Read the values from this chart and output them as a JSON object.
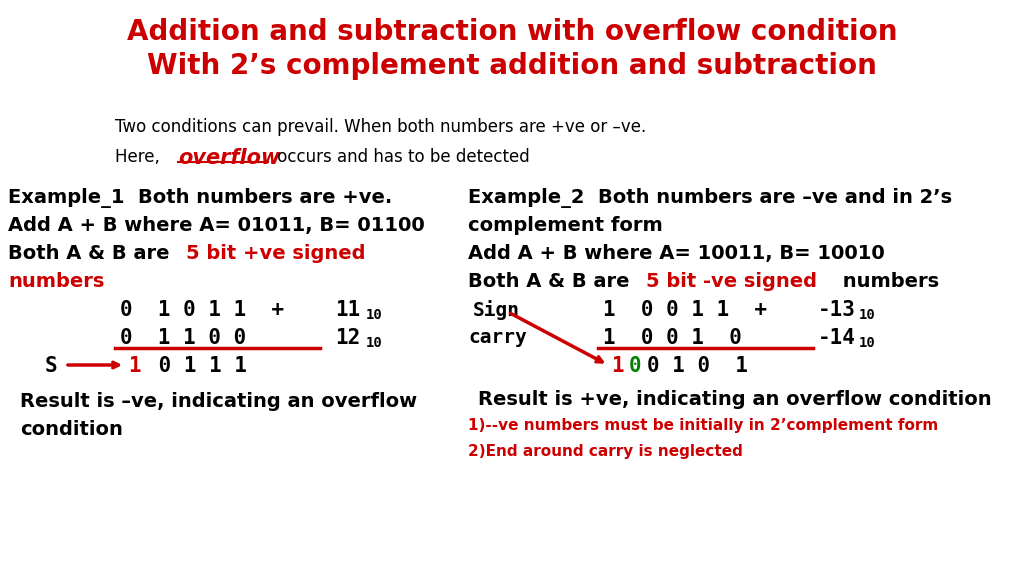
{
  "title_line1": "Addition and subtraction with overflow condition",
  "title_line2": "With 2’s complement addition and subtraction",
  "title_color": "#cc0000",
  "bg_color": "#ffffff",
  "intro_line1": "Two conditions can prevail. When both numbers are +ve or –ve.",
  "intro_line2_pre": "Here,  ",
  "intro_overflow": "overflow",
  "intro_line2_post": " occurs and has to be detected",
  "ex1_title": "Example_1  Both numbers are +ve.",
  "ex1_line2": "Add A + B where A= 01011, B= 01100",
  "ex1_line3_pre": "Both A & B are ",
  "ex1_line3_red": "5 bit +ve signed",
  "ex1_line4_red": "numbers",
  "ex2_title": "Example_2  Both numbers are –ve and in 2’s",
  "ex2_title2": "complement form",
  "ex2_line2": "Add A + B where A= 10011, B= 10010",
  "ex2_line3_pre": "Both A & B are ",
  "ex2_line3_red": "5 bit -ve signed",
  "ex2_line3_post": " numbers",
  "ex2_conclusion": "Result is +ve, indicating an overflow condition",
  "ex2_note1": "1)--ve numbers must be initially in 2’complement form",
  "ex2_note2": "2)End around carry is neglected"
}
